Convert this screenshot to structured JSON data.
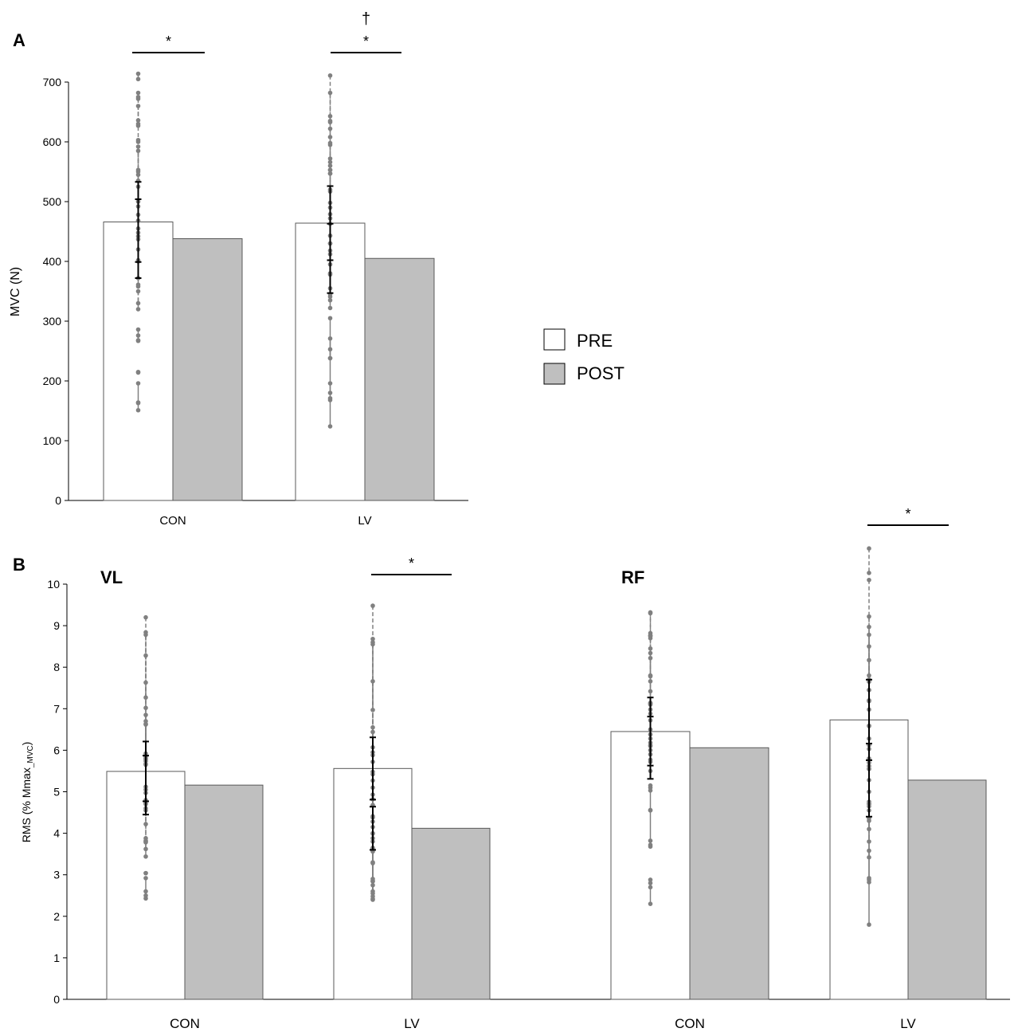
{
  "colors": {
    "pre": "#ffffff",
    "post": "#bfbfbf",
    "lines": "#808080",
    "axis": "#000000",
    "bar_edge": "#595959"
  },
  "legend": {
    "pre_label": "PRE",
    "post_label": "POST"
  },
  "chart_data": [
    {
      "panel": "A",
      "type": "bar",
      "ylabel": "MVC (N)",
      "ylim": [
        0,
        700
      ],
      "yticks": [
        0,
        100,
        200,
        300,
        400,
        500,
        600,
        700
      ],
      "categories": [
        "CON",
        "LV"
      ],
      "series": [
        {
          "name": "PRE",
          "values": [
            466,
            464
          ],
          "sd": [
            67,
            62
          ]
        },
        {
          "name": "POST",
          "values": [
            438,
            405
          ],
          "sd": [
            66,
            58
          ]
        }
      ],
      "significance": [
        {
          "group": "CON",
          "symbol": "*"
        },
        {
          "group": "LV",
          "symbol": "*",
          "extra": "†"
        }
      ],
      "individual": {
        "CON": [
          {
            "pre": 714,
            "post": 705,
            "dashed": true
          },
          {
            "pre": 675,
            "post": 682,
            "dashed": true
          },
          {
            "pre": 672,
            "post": 630,
            "dashed": true
          },
          {
            "pre": 660,
            "post": 627,
            "dashed": true
          },
          {
            "pre": 636,
            "post": 600,
            "dashed": true
          },
          {
            "pre": 603,
            "post": 550,
            "dashed": true
          },
          {
            "pre": 592,
            "post": 545,
            "dashed": true
          },
          {
            "pre": 585,
            "post": 535,
            "dashed": true
          },
          {
            "pre": 553,
            "post": 525,
            "dashed": true
          },
          {
            "pre": 500,
            "post": 468,
            "dashed": true
          },
          {
            "pre": 492,
            "post": 448,
            "dashed": false
          },
          {
            "pre": 478,
            "post": 442,
            "dashed": false
          },
          {
            "pre": 468,
            "post": 420,
            "dashed": true
          },
          {
            "pre": 455,
            "post": 402,
            "dashed": false
          },
          {
            "pre": 437,
            "post": 400,
            "dashed": true
          },
          {
            "pre": 372,
            "post": 358,
            "dashed": false
          },
          {
            "pre": 361,
            "post": 330,
            "dashed": true
          },
          {
            "pre": 350,
            "post": 320,
            "dashed": true
          },
          {
            "pre": 286,
            "post": 268,
            "dashed": false
          },
          {
            "pre": 276,
            "post": 267,
            "dashed": false
          },
          {
            "pre": 214,
            "post": 215,
            "dashed": false
          },
          {
            "pre": 196,
            "post": 164,
            "dashed": false
          },
          {
            "pre": 163,
            "post": 151,
            "dashed": false
          }
        ],
        "LV": [
          {
            "pre": 711,
            "post": 498,
            "dashed": true
          },
          {
            "pre": 682,
            "post": 633,
            "dashed": true
          },
          {
            "pre": 643,
            "post": 608,
            "dashed": true
          },
          {
            "pre": 635,
            "post": 598,
            "dashed": true
          },
          {
            "pre": 622,
            "post": 560,
            "dashed": true
          },
          {
            "pre": 595,
            "post": 547,
            "dashed": true
          },
          {
            "pre": 572,
            "post": 517,
            "dashed": true
          },
          {
            "pre": 566,
            "post": 490,
            "dashed": true
          },
          {
            "pre": 553,
            "post": 553,
            "dashed": true
          },
          {
            "pre": 547,
            "post": 463,
            "dashed": true
          },
          {
            "pre": 520,
            "post": 443,
            "dashed": true
          },
          {
            "pre": 479,
            "post": 430,
            "dashed": true
          },
          {
            "pre": 472,
            "post": 418,
            "dashed": false
          },
          {
            "pre": 430,
            "post": 395,
            "dashed": true
          },
          {
            "pre": 412,
            "post": 378,
            "dashed": true
          },
          {
            "pre": 380,
            "post": 355,
            "dashed": true
          },
          {
            "pre": 345,
            "post": 335,
            "dashed": true
          },
          {
            "pre": 341,
            "post": 322,
            "dashed": false
          },
          {
            "pre": 305,
            "post": 238,
            "dashed": false
          },
          {
            "pre": 271,
            "post": 238,
            "dashed": false
          },
          {
            "pre": 253,
            "post": 180,
            "dashed": false
          },
          {
            "pre": 196,
            "post": 168,
            "dashed": false
          },
          {
            "pre": 171,
            "post": 124,
            "dashed": false
          }
        ]
      }
    },
    {
      "panel": "B",
      "type": "bar",
      "ylabel_main": "RMS (% Mmax",
      "ylabel_sub": "_MVC",
      "ylabel_end": ")",
      "ylim": [
        0,
        10
      ],
      "yticks": [
        0,
        1,
        2,
        3,
        4,
        5,
        6,
        7,
        8,
        9,
        10
      ],
      "muscles": [
        "VL",
        "RF"
      ],
      "categories": [
        "CON",
        "LV",
        "CON",
        "LV"
      ],
      "series": [
        {
          "name": "PRE",
          "values": [
            5.49,
            5.56,
            6.45,
            6.73
          ],
          "sd": [
            0.72,
            0.75,
            0.82,
            0.97
          ]
        },
        {
          "name": "POST",
          "values": [
            5.16,
            4.12,
            6.06,
            5.28
          ],
          "sd": [
            0.71,
            0.52,
            0.75,
            0.88
          ]
        }
      ],
      "significance": [
        {
          "group": "VL-LV",
          "symbol": "*"
        },
        {
          "group": "RF-LV",
          "symbol": "*"
        }
      ],
      "individual": {
        "VL-CON": [
          {
            "pre": 9.2,
            "post": 4.6,
            "dashed": true
          },
          {
            "pre": 8.78,
            "post": 5.92,
            "dashed": true
          },
          {
            "pre": 7.63,
            "post": 6.63,
            "dashed": true
          },
          {
            "pre": 7.27,
            "post": 8.84,
            "dashed": true
          },
          {
            "pre": 7.02,
            "post": 5.87,
            "dashed": true
          },
          {
            "pre": 6.85,
            "post": 4.22,
            "dashed": true
          },
          {
            "pre": 5.84,
            "post": 6.7,
            "dashed": true
          },
          {
            "pre": 5.8,
            "post": 6.62,
            "dashed": false
          },
          {
            "pre": 5.78,
            "post": 5.67,
            "dashed": false
          },
          {
            "pre": 5.74,
            "post": 4.8,
            "dashed": true
          },
          {
            "pre": 5.65,
            "post": 4.72,
            "dashed": true
          },
          {
            "pre": 5.12,
            "post": 3.44,
            "dashed": true
          },
          {
            "pre": 5.05,
            "post": 4.7,
            "dashed": true
          },
          {
            "pre": 4.97,
            "post": 8.28,
            "dashed": true
          },
          {
            "pre": 4.55,
            "post": 3.78,
            "dashed": true
          },
          {
            "pre": 3.8,
            "post": 3.82,
            "dashed": false
          },
          {
            "pre": 3.62,
            "post": 3.88,
            "dashed": false
          },
          {
            "pre": 3.04,
            "post": 3.04,
            "dashed": true
          },
          {
            "pre": 2.92,
            "post": 2.43,
            "dashed": false
          },
          {
            "pre": 2.6,
            "post": 2.5,
            "dashed": false
          }
        ],
        "VL-LV": [
          {
            "pre": 9.48,
            "post": 5.42,
            "dashed": true
          },
          {
            "pre": 8.68,
            "post": 6.97,
            "dashed": true
          },
          {
            "pre": 8.6,
            "post": 6.44,
            "dashed": true
          },
          {
            "pre": 8.55,
            "post": 5.95,
            "dashed": true
          },
          {
            "pre": 7.66,
            "post": 5.88,
            "dashed": true
          },
          {
            "pre": 6.55,
            "post": 4.38,
            "dashed": false
          },
          {
            "pre": 6.07,
            "post": 4.28,
            "dashed": false
          },
          {
            "pre": 5.72,
            "post": 4.15,
            "dashed": false
          },
          {
            "pre": 5.48,
            "post": 3.99,
            "dashed": false
          },
          {
            "pre": 5.27,
            "post": 3.65,
            "dashed": false
          },
          {
            "pre": 5.1,
            "post": 3.62,
            "dashed": false
          },
          {
            "pre": 4.93,
            "post": 2.85,
            "dashed": true
          },
          {
            "pre": 4.82,
            "post": 2.75,
            "dashed": true
          },
          {
            "pre": 4.68,
            "post": 3.56,
            "dashed": false
          },
          {
            "pre": 4.41,
            "post": 2.6,
            "dashed": true
          },
          {
            "pre": 4.0,
            "post": 2.9,
            "dashed": true
          },
          {
            "pre": 3.88,
            "post": 2.48,
            "dashed": true
          },
          {
            "pre": 3.8,
            "post": 2.55,
            "dashed": true
          },
          {
            "pre": 3.62,
            "post": 2.4,
            "dashed": true
          },
          {
            "pre": 3.3,
            "post": 3.28,
            "dashed": false
          },
          {
            "pre": 2.84,
            "post": 2.42,
            "dashed": false
          }
        ],
        "RF-CON": [
          {
            "pre": 9.32,
            "post": 8.22,
            "dashed": true
          },
          {
            "pre": 8.82,
            "post": 9.3,
            "dashed": true
          },
          {
            "pre": 8.75,
            "post": 8.77,
            "dashed": true
          },
          {
            "pre": 8.7,
            "post": 7.14,
            "dashed": true
          },
          {
            "pre": 8.45,
            "post": 7.78,
            "dashed": true
          },
          {
            "pre": 8.34,
            "post": 7.1,
            "dashed": true
          },
          {
            "pre": 7.8,
            "post": 8.75,
            "dashed": true
          },
          {
            "pre": 7.66,
            "post": 7.12,
            "dashed": false
          },
          {
            "pre": 7.42,
            "post": 6.38,
            "dashed": true
          },
          {
            "pre": 7.13,
            "post": 6.0,
            "dashed": true
          },
          {
            "pre": 6.98,
            "post": 5.9,
            "dashed": false
          },
          {
            "pre": 6.72,
            "post": 5.72,
            "dashed": false
          },
          {
            "pre": 6.5,
            "post": 6.88,
            "dashed": true
          },
          {
            "pre": 6.28,
            "post": 6.12,
            "dashed": true
          },
          {
            "pre": 6.18,
            "post": 5.77,
            "dashed": true
          },
          {
            "pre": 6.1,
            "post": 5.5,
            "dashed": true
          },
          {
            "pre": 5.03,
            "post": 5.15,
            "dashed": false
          },
          {
            "pre": 4.55,
            "post": 5.1,
            "dashed": false
          },
          {
            "pre": 3.72,
            "post": 4.56,
            "dashed": false
          },
          {
            "pre": 3.68,
            "post": 3.82,
            "dashed": false
          },
          {
            "pre": 2.88,
            "post": 2.7,
            "dashed": false
          },
          {
            "pre": 2.8,
            "post": 2.3,
            "dashed": false
          }
        ],
        "RF-LV": [
          {
            "pre": 10.86,
            "post": 10.27,
            "dashed": true
          },
          {
            "pre": 10.1,
            "post": 7.7,
            "dashed": true
          },
          {
            "pre": 9.22,
            "post": 7.45,
            "dashed": true
          },
          {
            "pre": 8.97,
            "post": 7.2,
            "dashed": true
          },
          {
            "pre": 8.78,
            "post": 5.55,
            "dashed": true
          },
          {
            "pre": 8.5,
            "post": 4.76,
            "dashed": true
          },
          {
            "pre": 8.17,
            "post": 6.59,
            "dashed": true
          },
          {
            "pre": 7.8,
            "post": 7.18,
            "dashed": true
          },
          {
            "pre": 7.65,
            "post": 7.45,
            "dashed": true
          },
          {
            "pre": 7.2,
            "post": 5.28,
            "dashed": false
          },
          {
            "pre": 6.98,
            "post": 5.7,
            "dashed": true
          },
          {
            "pre": 6.58,
            "post": 4.72,
            "dashed": false
          },
          {
            "pre": 6.28,
            "post": 6.12,
            "dashed": true
          },
          {
            "pre": 6.03,
            "post": 4.1,
            "dashed": false
          },
          {
            "pre": 5.8,
            "post": 3.8,
            "dashed": true
          },
          {
            "pre": 5.62,
            "post": 5.0,
            "dashed": false
          },
          {
            "pre": 5.55,
            "post": 4.3,
            "dashed": false
          },
          {
            "pre": 4.7,
            "post": 3.42,
            "dashed": false
          },
          {
            "pre": 4.55,
            "post": 4.36,
            "dashed": false
          },
          {
            "pre": 2.92,
            "post": 3.58,
            "dashed": false
          },
          {
            "pre": 2.82,
            "post": 2.88,
            "dashed": false
          },
          {
            "pre": 4.65,
            "post": 1.8,
            "dashed": false
          }
        ]
      }
    }
  ]
}
